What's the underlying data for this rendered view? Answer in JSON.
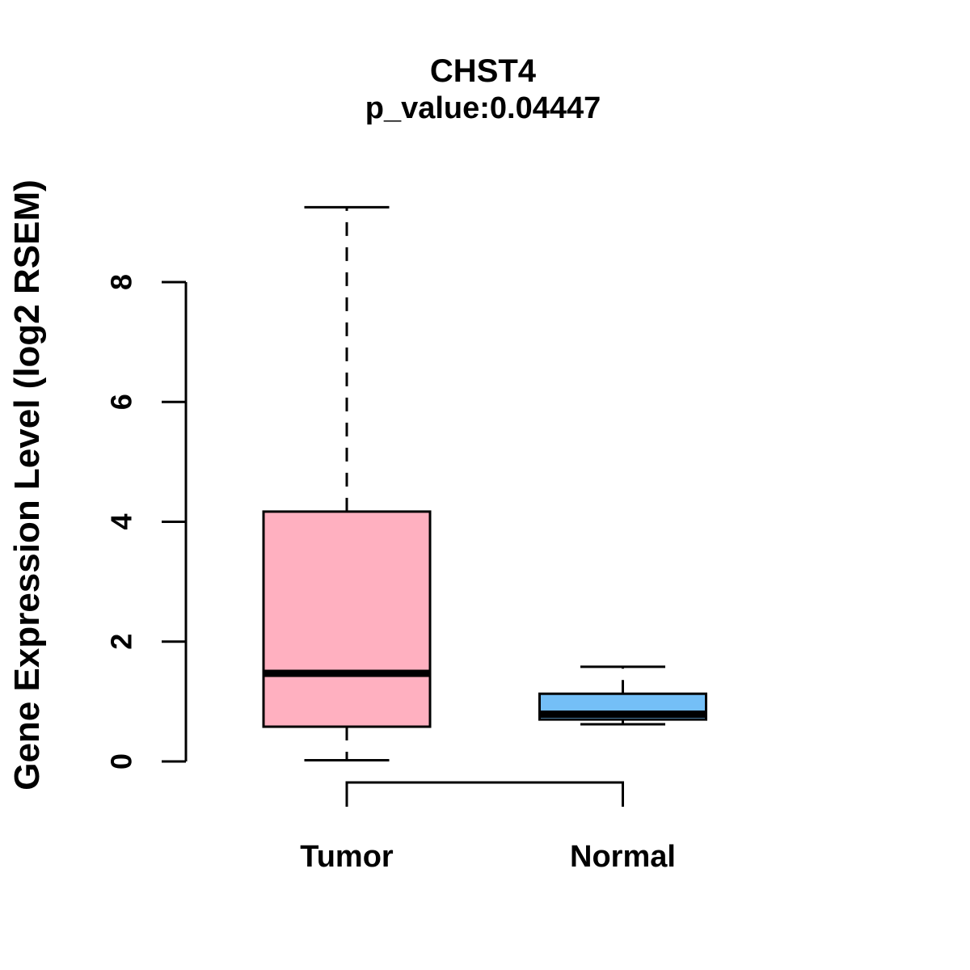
{
  "figure": {
    "title": "CHST4",
    "subtitle": "p_value:0.04447",
    "ylabel": "Gene Expression Level (log2 RSEM)"
  },
  "chart_data": {
    "type": "boxplot",
    "title": "CHST4",
    "subtitle": "p_value:0.04447",
    "xlabel": "",
    "ylabel": "Gene Expression Level (log2 RSEM)",
    "yticks": [
      0,
      2,
      4,
      6,
      8
    ],
    "ylim": [
      0,
      9.4
    ],
    "grid": false,
    "legend": "none",
    "categories": [
      "Tumor",
      "Normal"
    ],
    "groups": [
      {
        "label": "Tumor",
        "fill": "#FFB0C0",
        "stats": {
          "min": 0.02,
          "q1": 0.58,
          "median": 1.47,
          "q3": 4.17,
          "max": 9.25
        }
      },
      {
        "label": "Normal",
        "fill": "#74BFF7",
        "stats": {
          "min": 0.62,
          "q1": 0.7,
          "median": 0.79,
          "q3": 1.13,
          "max": 1.58
        }
      }
    ],
    "comparison_bracket": {
      "between": [
        "Tumor",
        "Normal"
      ]
    },
    "colors": {
      "line": "#000000",
      "background": "#FFFFFF"
    }
  }
}
